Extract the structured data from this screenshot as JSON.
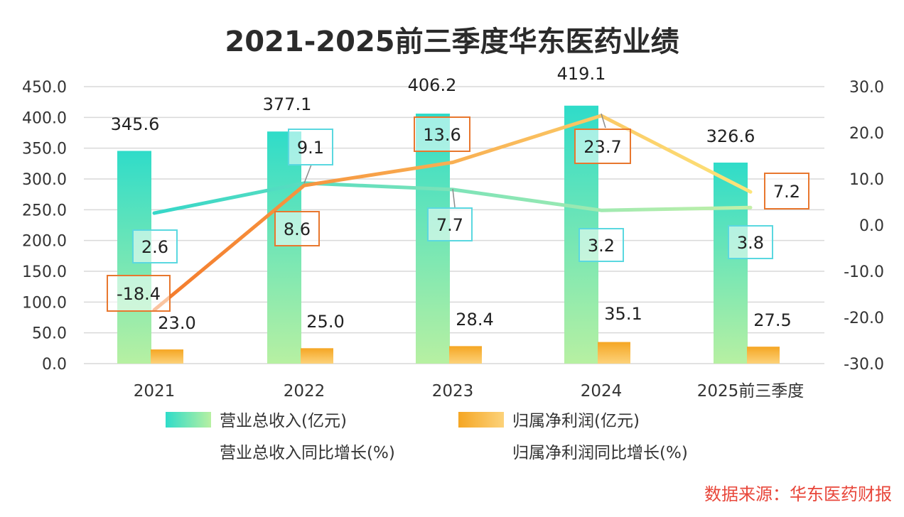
{
  "chart_data": {
    "type": "bar",
    "title": "2021-2025前三季度华东医药业绩",
    "categories": [
      "2021",
      "2022",
      "2023",
      "2024",
      "2025前三季度"
    ],
    "left_axis": {
      "ylim": [
        0,
        450
      ],
      "ticks": [
        "0.0",
        "50.0",
        "100.0",
        "150.0",
        "200.0",
        "250.0",
        "300.0",
        "350.0",
        "400.0",
        "450.0"
      ]
    },
    "right_axis": {
      "ylim": [
        -30,
        30
      ],
      "ticks": [
        "-30.0",
        "-20.0",
        "-10.0",
        "0.0",
        "10.0",
        "20.0",
        "30.0"
      ]
    },
    "grid": true,
    "legend_position": "bottom",
    "series": [
      {
        "name": "营业总收入(亿元)",
        "kind": "bar",
        "axis": "left",
        "values": [
          345.6,
          377.1,
          406.2,
          419.1,
          326.6
        ],
        "labels": [
          "345.6",
          "377.1",
          "406.2",
          "419.1",
          "326.6"
        ],
        "color_top": "#2fdcc9",
        "color_bottom": "#b7f0a2"
      },
      {
        "name": "归属净利润(亿元)",
        "kind": "bar",
        "axis": "left",
        "values": [
          23.0,
          25.0,
          28.4,
          35.1,
          27.5
        ],
        "labels": [
          "23.0",
          "25.0",
          "28.4",
          "35.1",
          "27.5"
        ],
        "color_top": "#f5a623",
        "color_bottom": "#fcd27a"
      },
      {
        "name": "营业总收入同比增长(%)",
        "kind": "line",
        "axis": "right",
        "values": [
          2.6,
          9.1,
          7.7,
          3.2,
          3.8
        ],
        "labels": [
          "2.6",
          "9.1",
          "7.7",
          "3.2",
          "3.8"
        ],
        "color_start": "#33d6c9",
        "color_end": "#c4f0a8"
      },
      {
        "name": "归属净利润同比增长(%)",
        "kind": "line",
        "axis": "right",
        "values": [
          -18.4,
          8.6,
          13.6,
          23.7,
          7.2
        ],
        "labels": [
          "-18.4",
          "8.6",
          "13.6",
          "23.7",
          "7.2"
        ],
        "color_start": "#f4782a",
        "color_end": "#fde57a"
      }
    ],
    "source": "数据来源：华东医药财报",
    "colors": {
      "revenue_growth_box": "#5ad8e0",
      "profit_growth_box": "#e8772e",
      "source_text": "#e8463a"
    }
  }
}
